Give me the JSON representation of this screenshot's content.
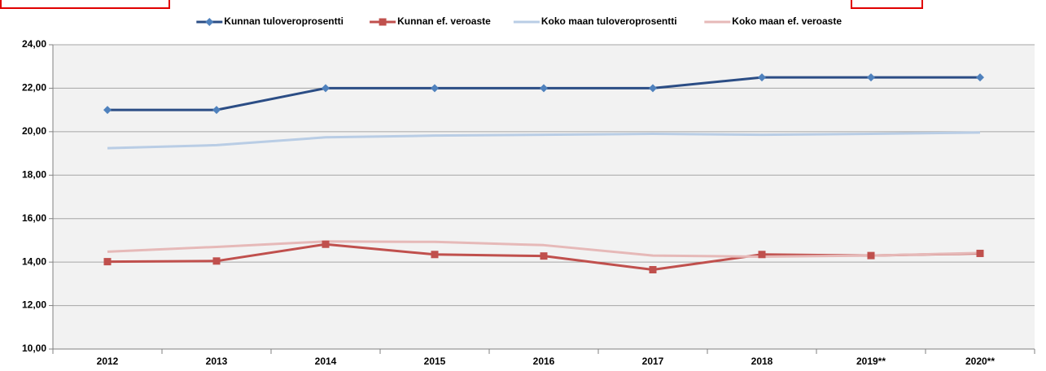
{
  "chart_data": {
    "type": "line",
    "categories": [
      "2012",
      "2013",
      "2014",
      "2015",
      "2016",
      "2017",
      "2018",
      "2019**",
      "2020**"
    ],
    "series": [
      {
        "name": "Kunnan tuloveroprosentti",
        "color": "#2b4d85",
        "marker": "diamond",
        "marker_color": "#4f81bd",
        "values": [
          21,
          21,
          22,
          22,
          22,
          22,
          22.5,
          22.5,
          22.5
        ]
      },
      {
        "name": "Kunnan ef. veroaste",
        "color": "#c0504d",
        "marker": "square",
        "marker_color": "#c0504d",
        "values": [
          14.02,
          14.05,
          14.82,
          14.35,
          14.28,
          13.65,
          14.35,
          14.3,
          14.4
        ]
      },
      {
        "name": "Koko maan tuloveroprosentti",
        "color": "#b9cde5",
        "values": [
          19.24,
          19.38,
          19.74,
          19.82,
          19.86,
          19.9,
          19.86,
          19.9,
          19.96
        ]
      },
      {
        "name": "Koko maan ef. veroaste",
        "color": "#e6b9b8",
        "values": [
          14.48,
          14.7,
          14.95,
          14.93,
          14.78,
          14.3,
          14.25,
          14.3,
          14.42
        ]
      }
    ],
    "ylim": [
      10,
      24
    ],
    "yticks": [
      {
        "value": 10,
        "label": "10,00"
      },
      {
        "value": 12,
        "label": "12,00"
      },
      {
        "value": 14,
        "label": "14,00"
      },
      {
        "value": 16,
        "label": "16,00"
      },
      {
        "value": 18,
        "label": "18,00"
      },
      {
        "value": 20,
        "label": "20,00"
      },
      {
        "value": 22,
        "label": "22,00"
      },
      {
        "value": 24,
        "label": "24,00"
      }
    ],
    "grid": true,
    "legend": "top"
  }
}
